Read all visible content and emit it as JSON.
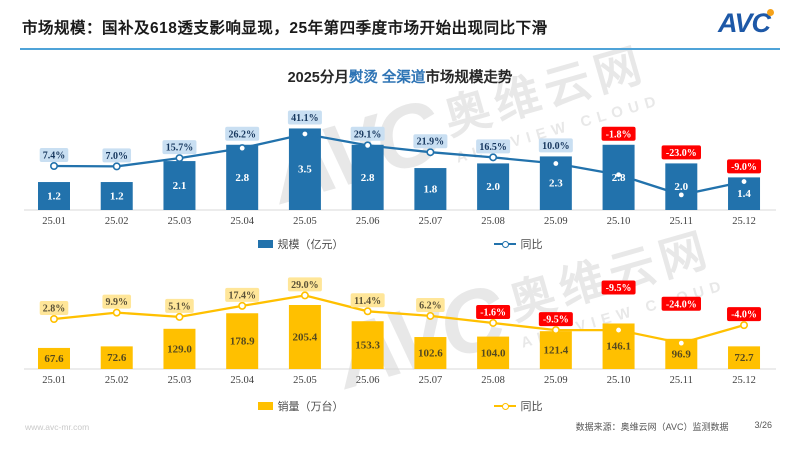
{
  "header": {
    "title": "市场规模：国补及618透支影响显现，25年第四季度市场开始出现同比下滑",
    "logo_text": "AVC"
  },
  "subtitle": {
    "prefix": "2025分月",
    "highlight": "熨烫 全渠道",
    "suffix": "市场规模走势"
  },
  "watermark": {
    "brand": "AVC",
    "cn": "奥维云网",
    "en": "ALL VIEW CLOUD"
  },
  "colors": {
    "blue": "#2272AC",
    "yellow": "#FFC000",
    "divider_blue": "#4FA3D8",
    "negative_red": "#FF0000",
    "logo_blue": "#1D58A7",
    "logo_orange": "#F5A21B"
  },
  "chart_data": [
    {
      "type": "bar+line",
      "title": "2025分月熨烫 全渠道市场规模走势",
      "legend_position": "bottom",
      "categories": [
        "25.01",
        "25.02",
        "25.03",
        "25.04",
        "25.05",
        "25.06",
        "25.07",
        "25.08",
        "25.09",
        "25.10",
        "25.11",
        "25.12"
      ],
      "series": [
        {
          "name": "规模（亿元）",
          "type": "bar",
          "values": [
            1.2,
            1.2,
            2.1,
            2.8,
            3.5,
            2.8,
            1.8,
            2.0,
            2.3,
            2.8,
            2.0,
            1.4
          ],
          "labels": [
            "1.2",
            "1.2",
            "2.1",
            "2.8",
            "3.5",
            "2.8",
            "1.8",
            "2.0",
            "2.3",
            "2.8",
            "2.0",
            "1.4"
          ],
          "color": "#2272AC",
          "label_color": "#FFFFFF"
        },
        {
          "name": "同比",
          "type": "line",
          "unit": "%",
          "values": [
            7.4,
            7.0,
            15.7,
            26.2,
            41.1,
            29.1,
            21.9,
            16.5,
            10.0,
            -1.8,
            -23.0,
            -9.0
          ],
          "labels": [
            "7.4%",
            "7.0%",
            "15.7%",
            "26.2%",
            "41.1%",
            "29.1%",
            "21.9%",
            "16.5%",
            "10.0%",
            "-1.8%",
            "-23.0%",
            "-9.0%"
          ],
          "color": "#2272AC",
          "positive_label": {
            "bg": "#C9DFF2",
            "fg": "#17375E"
          },
          "negative_label": {
            "bg": "#FF0000",
            "fg": "#FFFFFF"
          },
          "label_dy": [
            0,
            0,
            0,
            0,
            0,
            0,
            0,
            0,
            0,
            0,
            0,
            0
          ]
        }
      ],
      "axis": {
        "label_color": "#404040",
        "line_color": "#D9D9D9"
      }
    },
    {
      "type": "bar+line",
      "title": "2025分月熨烫 全渠道市场规模走势",
      "legend_position": "bottom",
      "categories": [
        "25.01",
        "25.02",
        "25.03",
        "25.04",
        "25.05",
        "25.06",
        "25.07",
        "25.08",
        "25.09",
        "25.10",
        "25.11",
        "25.12"
      ],
      "series": [
        {
          "name": "销量（万台）",
          "type": "bar",
          "values": [
            67.6,
            72.6,
            129.0,
            178.9,
            205.4,
            153.3,
            102.6,
            104.0,
            121.4,
            146.1,
            96.9,
            72.7
          ],
          "labels": [
            "67.6",
            "72.6",
            "129.0",
            "178.9",
            "205.4",
            "153.3",
            "102.6",
            "104.0",
            "121.4",
            "146.1",
            "96.9",
            "72.7"
          ],
          "color": "#FFC000",
          "label_color": "#55491F"
        },
        {
          "name": "同比",
          "type": "line",
          "unit": "%",
          "values": [
            2.8,
            9.9,
            5.1,
            17.4,
            29.0,
            11.4,
            6.2,
            -1.6,
            -9.5,
            -9.5,
            -24.0,
            -4.0
          ],
          "labels": [
            "2.8%",
            "9.9%",
            "5.1%",
            "17.4%",
            "29.0%",
            "11.4%",
            "6.2%",
            "-1.6%",
            "-9.5%",
            "-9.5%",
            "-24.0%",
            "-4.0%"
          ],
          "color": "#FFC000",
          "positive_label": {
            "bg": "#FFE699",
            "fg": "#5A5138"
          },
          "negative_label": {
            "bg": "#FF0000",
            "fg": "#FFFFFF"
          },
          "label_dy": [
            0,
            0,
            0,
            0,
            0,
            0,
            0,
            0,
            0,
            -25,
            -24,
            0
          ]
        }
      ],
      "axis": {
        "label_color": "#404040",
        "line_color": "#D9D9D9"
      }
    }
  ],
  "footer": {
    "website": "www.avc-mr.com",
    "source": "数据来源：奥维云网（AVC）监测数据",
    "page": "3/26"
  }
}
